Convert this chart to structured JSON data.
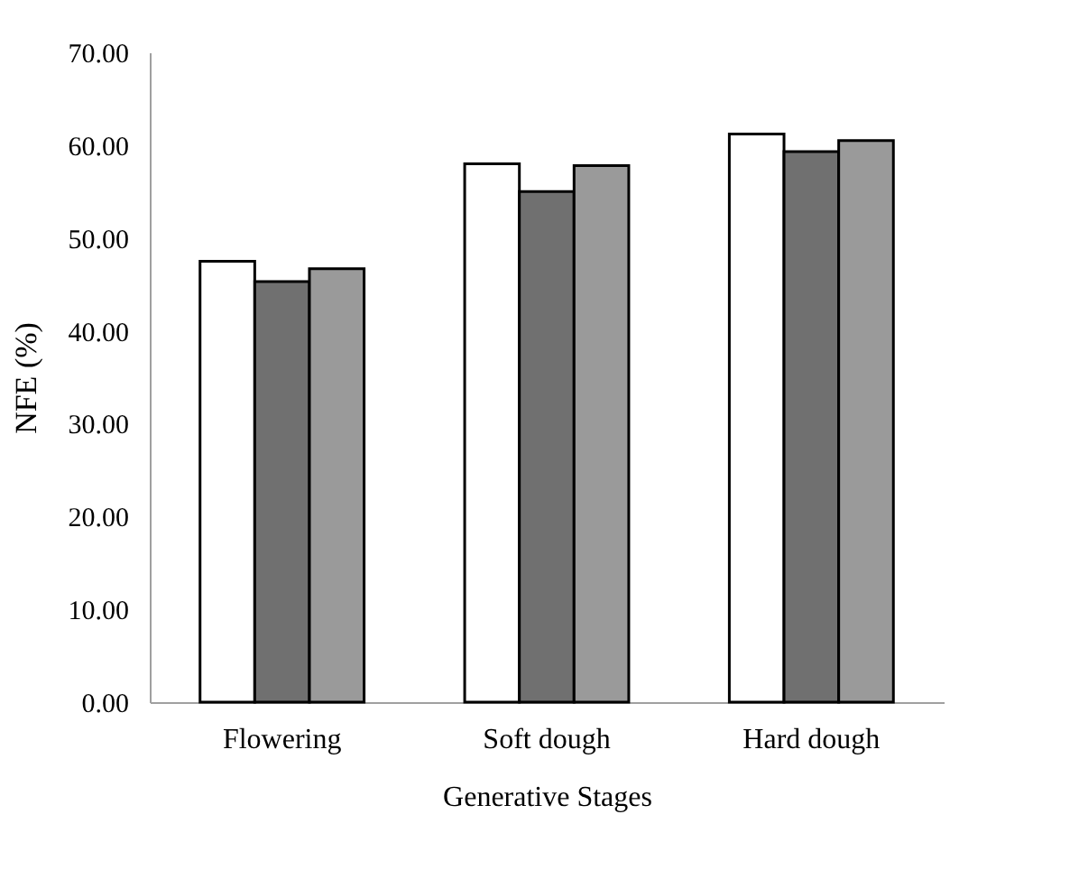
{
  "chart_data": {
    "type": "bar",
    "xlabel": "Generative Stages",
    "ylabel": "NFE (%)",
    "categories": [
      "Flowering",
      "Soft dough",
      "Hard dough"
    ],
    "series": [
      {
        "color": "#ffffff",
        "values": [
          47.5,
          58.0,
          61.2
        ]
      },
      {
        "color": "#707070",
        "values": [
          45.3,
          55.0,
          59.3
        ]
      },
      {
        "color": "#9a9a9a",
        "values": [
          46.7,
          57.8,
          60.5
        ]
      }
    ],
    "ylim": [
      0,
      70
    ],
    "yticks": [
      {
        "value": 0,
        "label": "0.00"
      },
      {
        "value": 10,
        "label": "10.00"
      },
      {
        "value": 20,
        "label": "20.00"
      },
      {
        "value": 30,
        "label": "30.00"
      },
      {
        "value": 40,
        "label": "40.00"
      },
      {
        "value": 50,
        "label": "50.00"
      },
      {
        "value": 60,
        "label": "60.00"
      },
      {
        "value": 70,
        "label": "70.00"
      }
    ],
    "grid": false
  }
}
